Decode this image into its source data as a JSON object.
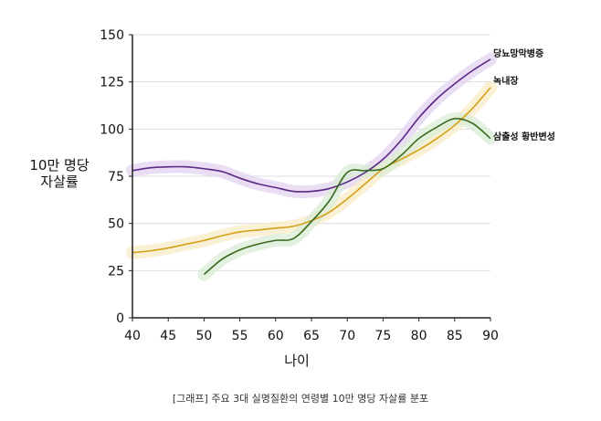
{
  "chart_data": {
    "type": "line",
    "title": "",
    "xlabel": "나이",
    "ylabel": [
      "10만 명당",
      "자살률"
    ],
    "xlim": [
      40,
      90
    ],
    "ylim": [
      0,
      150
    ],
    "xticks": [
      40,
      45,
      50,
      55,
      60,
      65,
      70,
      75,
      80,
      85,
      90
    ],
    "yticks": [
      0,
      25,
      50,
      75,
      100,
      125,
      150
    ],
    "grid": "horizontal",
    "legend": "inline labels at right end of lines",
    "series": [
      {
        "name": "당뇨망막병증",
        "color": "#5b2a86",
        "band_color": "#e3d3f2",
        "x": [
          40,
          42.5,
          45,
          47.5,
          50,
          52.5,
          55,
          57.5,
          60,
          62.5,
          65,
          67.5,
          70,
          72.5,
          75,
          77.5,
          80,
          82.5,
          85,
          87.5,
          90
        ],
        "y": [
          78,
          79.5,
          80,
          80,
          79,
          77.5,
          74,
          71,
          69,
          67,
          67,
          68.5,
          72,
          77,
          84,
          94,
          106,
          116,
          124,
          131,
          137
        ]
      },
      {
        "name": "녹내장",
        "color": "#d4a017",
        "band_color": "#f8ebc6",
        "x": [
          40,
          42.5,
          45,
          47.5,
          50,
          52.5,
          55,
          57.5,
          60,
          62.5,
          65,
          67.5,
          70,
          72.5,
          75,
          77.5,
          80,
          82.5,
          85,
          87.5,
          90
        ],
        "y": [
          34.5,
          35.5,
          37,
          39,
          41,
          43.5,
          45.5,
          46.5,
          47.5,
          48.5,
          51.5,
          56,
          63,
          71,
          79,
          84,
          89,
          95,
          102,
          111,
          122
        ]
      },
      {
        "name": "삼출성 황반변성",
        "color": "#3a6b1f",
        "band_color": "#d9ecd6",
        "x": [
          50,
          52.5,
          55,
          57.5,
          60,
          62.5,
          65,
          67.5,
          70,
          72.5,
          75,
          77.5,
          80,
          82.5,
          85,
          87.5,
          90
        ],
        "y": [
          23,
          31,
          36,
          39,
          41,
          42,
          51,
          62,
          77,
          78,
          79,
          86,
          95,
          101,
          105.5,
          103,
          95
        ]
      }
    ]
  },
  "caption": "[그래프] 주요 3대 실명질환의 연령별 10만 명당 자살률 분포"
}
